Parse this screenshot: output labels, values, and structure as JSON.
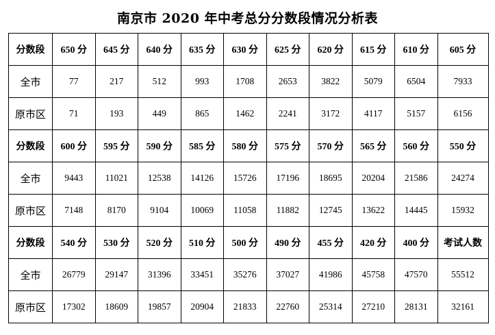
{
  "title": "南京市 2020 年中考总分分数段情况分析表",
  "blocks": [
    {
      "header_label": "分数段",
      "headers": [
        "650 分",
        "645 分",
        "640 分",
        "635 分",
        "630 分",
        "625 分",
        "620 分",
        "615 分",
        "610 分",
        "605 分"
      ],
      "rows": [
        {
          "label": "全市",
          "values": [
            "77",
            "217",
            "512",
            "993",
            "1708",
            "2653",
            "3822",
            "5079",
            "6504",
            "7933"
          ]
        },
        {
          "label": "原市区",
          "values": [
            "71",
            "193",
            "449",
            "865",
            "1462",
            "2241",
            "3172",
            "4117",
            "5157",
            "6156"
          ]
        }
      ]
    },
    {
      "header_label": "分数段",
      "headers": [
        "600 分",
        "595 分",
        "590 分",
        "585 分",
        "580 分",
        "575 分",
        "570 分",
        "565 分",
        "560 分",
        "550 分"
      ],
      "rows": [
        {
          "label": "全市",
          "values": [
            "9443",
            "11021",
            "12538",
            "14126",
            "15726",
            "17196",
            "18695",
            "20204",
            "21586",
            "24274"
          ]
        },
        {
          "label": "原市区",
          "values": [
            "7148",
            "8170",
            "9104",
            "10069",
            "11058",
            "11882",
            "12745",
            "13622",
            "14445",
            "15932"
          ]
        }
      ]
    },
    {
      "header_label": "分数段",
      "headers": [
        "540 分",
        "530 分",
        "520 分",
        "510 分",
        "500 分",
        "490 分",
        "455 分",
        "420 分",
        "400 分",
        "考试人数"
      ],
      "rows": [
        {
          "label": "全市",
          "values": [
            "26779",
            "29147",
            "31396",
            "33451",
            "35276",
            "37027",
            "41986",
            "45758",
            "47570",
            "55512"
          ]
        },
        {
          "label": "原市区",
          "values": [
            "17302",
            "18609",
            "19857",
            "20904",
            "21833",
            "22760",
            "25314",
            "27210",
            "28131",
            "32161"
          ]
        }
      ]
    }
  ]
}
